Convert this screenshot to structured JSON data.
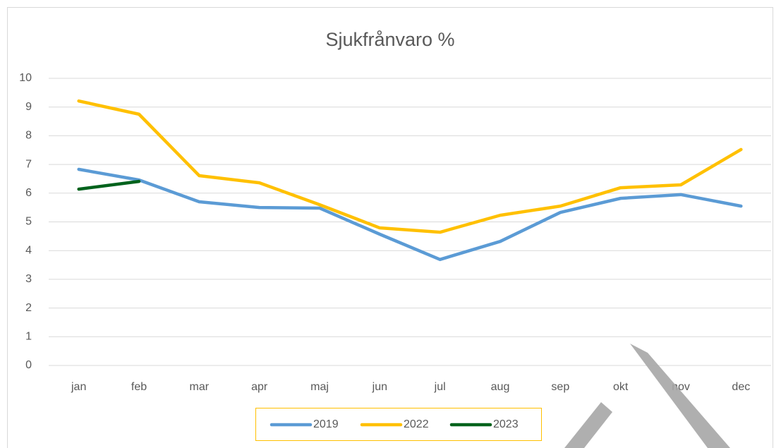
{
  "chart_data": {
    "type": "line",
    "title": "Sjukfrånvaro %",
    "categories": [
      "jan",
      "feb",
      "mar",
      "apr",
      "maj",
      "jun",
      "jul",
      "aug",
      "sep",
      "okt",
      "nov",
      "dec"
    ],
    "series": [
      {
        "name": "2019",
        "color": "#5b9bd5",
        "values": [
          6.83,
          6.46,
          5.7,
          5.5,
          5.48,
          4.57,
          3.69,
          4.32,
          5.33,
          5.82,
          5.95,
          5.55
        ]
      },
      {
        "name": "2022",
        "color": "#ffc000",
        "values": [
          9.21,
          8.75,
          6.61,
          6.36,
          5.6,
          4.79,
          4.64,
          5.23,
          5.55,
          6.19,
          6.29,
          7.52
        ]
      },
      {
        "name": "2023",
        "color": "#00621c",
        "values": [
          6.14,
          6.41,
          null,
          null,
          null,
          null,
          null,
          null,
          null,
          null,
          null,
          null
        ]
      }
    ],
    "ylim": [
      0,
      10
    ],
    "yticks": [
      0,
      1,
      2,
      3,
      4,
      5,
      6,
      7,
      8,
      9,
      10
    ],
    "grid": true,
    "legend": "bottom"
  }
}
